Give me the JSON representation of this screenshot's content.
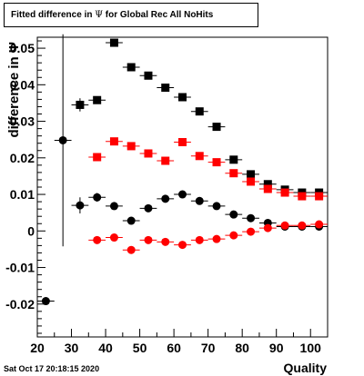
{
  "title": {
    "prefix": "Fitted difference in ",
    "symbol": "Ψ",
    "suffix": "  for Global Rec All NoHits"
  },
  "timestamp": "Sat Oct 17 20:18:15 2020",
  "chart_data": {
    "type": "scatter",
    "title": "Fitted difference in Ψ for Global Rec All NoHits",
    "xlabel": "Quality",
    "ylabel": "difference in Ψ",
    "xlim": [
      20,
      105
    ],
    "ylim": [
      -0.029,
      0.053
    ],
    "xticks": [
      20,
      30,
      40,
      50,
      60,
      70,
      80,
      90,
      100
    ],
    "yticks": [
      -0.02,
      -0.01,
      0,
      0.01,
      0.02,
      0.03,
      0.04,
      0.05
    ],
    "ytick_labels": [
      "-0.02",
      "-0.01",
      "0",
      "0.01",
      "0.02",
      "0.03",
      "0.04",
      "0.05"
    ],
    "grid": false,
    "x_err": 2.5,
    "series": [
      {
        "marker": "square",
        "color": "#000000",
        "points": [
          {
            "x": 32.5,
            "y": 0.0345,
            "yerr": 0.0018
          },
          {
            "x": 37.5,
            "y": 0.0358,
            "yerr": 0.001
          },
          {
            "x": 42.5,
            "y": 0.0515,
            "yerr": 0.001
          },
          {
            "x": 47.5,
            "y": 0.0448,
            "yerr": 0.0006
          },
          {
            "x": 52.5,
            "y": 0.0425,
            "yerr": 0.0006
          },
          {
            "x": 57.5,
            "y": 0.0392,
            "yerr": 0.0006
          },
          {
            "x": 62.5,
            "y": 0.0366,
            "yerr": 0.0006
          },
          {
            "x": 67.5,
            "y": 0.0327,
            "yerr": 0.0006
          },
          {
            "x": 72.5,
            "y": 0.0285,
            "yerr": 0.0006
          },
          {
            "x": 77.5,
            "y": 0.0195,
            "yerr": 0.0006
          },
          {
            "x": 82.5,
            "y": 0.0155,
            "yerr": 0.0006
          },
          {
            "x": 87.5,
            "y": 0.0128,
            "yerr": 0.0006
          },
          {
            "x": 92.5,
            "y": 0.0113,
            "yerr": 0.0006
          },
          {
            "x": 97.5,
            "y": 0.0105,
            "yerr": 0.0006
          },
          {
            "x": 102.5,
            "y": 0.0105,
            "yerr": 0.0006
          }
        ]
      },
      {
        "marker": "square",
        "color": "#ff0000",
        "points": [
          {
            "x": 37.5,
            "y": 0.0202,
            "yerr": 0.0006
          },
          {
            "x": 42.5,
            "y": 0.0245,
            "yerr": 0.0006
          },
          {
            "x": 47.5,
            "y": 0.0232,
            "yerr": 0.0006
          },
          {
            "x": 52.5,
            "y": 0.0212,
            "yerr": 0.0006
          },
          {
            "x": 57.5,
            "y": 0.0192,
            "yerr": 0.0006
          },
          {
            "x": 62.5,
            "y": 0.0243,
            "yerr": 0.0006
          },
          {
            "x": 67.5,
            "y": 0.0205,
            "yerr": 0.0006
          },
          {
            "x": 72.5,
            "y": 0.0188,
            "yerr": 0.0006
          },
          {
            "x": 77.5,
            "y": 0.0158,
            "yerr": 0.0006
          },
          {
            "x": 82.5,
            "y": 0.0135,
            "yerr": 0.0006
          },
          {
            "x": 87.5,
            "y": 0.0115,
            "yerr": 0.0006
          },
          {
            "x": 92.5,
            "y": 0.0105,
            "yerr": 0.0006
          },
          {
            "x": 97.5,
            "y": 0.0095,
            "yerr": 0.0006
          },
          {
            "x": 102.5,
            "y": 0.0095,
            "yerr": 0.0006
          }
        ]
      },
      {
        "marker": "circle",
        "color": "#000000",
        "points": [
          {
            "x": 22.5,
            "y": -0.0192,
            "yerr": 0.0006
          },
          {
            "x": 27.5,
            "y": 0.0248,
            "yerr": 0.029
          },
          {
            "x": 32.5,
            "y": 0.007,
            "yerr": 0.0022
          },
          {
            "x": 37.5,
            "y": 0.0092,
            "yerr": 0.0012
          },
          {
            "x": 42.5,
            "y": 0.0068,
            "yerr": 0.0008
          },
          {
            "x": 47.5,
            "y": 0.0028,
            "yerr": 0.0006
          },
          {
            "x": 52.5,
            "y": 0.0062,
            "yerr": 0.0006
          },
          {
            "x": 57.5,
            "y": 0.0088,
            "yerr": 0.0006
          },
          {
            "x": 62.5,
            "y": 0.01,
            "yerr": 0.0006
          },
          {
            "x": 67.5,
            "y": 0.0082,
            "yerr": 0.0006
          },
          {
            "x": 72.5,
            "y": 0.0068,
            "yerr": 0.0006
          },
          {
            "x": 77.5,
            "y": 0.0045,
            "yerr": 0.0006
          },
          {
            "x": 82.5,
            "y": 0.0035,
            "yerr": 0.0006
          },
          {
            "x": 87.5,
            "y": 0.0022,
            "yerr": 0.0006
          },
          {
            "x": 92.5,
            "y": 0.0012,
            "yerr": 0.0006
          },
          {
            "x": 97.5,
            "y": 0.0012,
            "yerr": 0.0006
          },
          {
            "x": 102.5,
            "y": 0.0012,
            "yerr": 0.0006
          }
        ]
      },
      {
        "marker": "circle",
        "color": "#ff0000",
        "points": [
          {
            "x": 37.5,
            "y": -0.0025,
            "yerr": 0.0006
          },
          {
            "x": 42.5,
            "y": -0.0018,
            "yerr": 0.0006
          },
          {
            "x": 47.5,
            "y": -0.0052,
            "yerr": 0.0006
          },
          {
            "x": 52.5,
            "y": -0.0025,
            "yerr": 0.0006
          },
          {
            "x": 57.5,
            "y": -0.003,
            "yerr": 0.0006
          },
          {
            "x": 62.5,
            "y": -0.0038,
            "yerr": 0.0006
          },
          {
            "x": 67.5,
            "y": -0.0025,
            "yerr": 0.0006
          },
          {
            "x": 72.5,
            "y": -0.0022,
            "yerr": 0.0006
          },
          {
            "x": 77.5,
            "y": -0.0012,
            "yerr": 0.0006
          },
          {
            "x": 82.5,
            "y": -0.0002,
            "yerr": 0.0006
          },
          {
            "x": 87.5,
            "y": 0.0008,
            "yerr": 0.0006
          },
          {
            "x": 92.5,
            "y": 0.0015,
            "yerr": 0.0006
          },
          {
            "x": 97.5,
            "y": 0.0015,
            "yerr": 0.0006
          },
          {
            "x": 102.5,
            "y": 0.0018,
            "yerr": 0.0006
          }
        ]
      }
    ]
  }
}
